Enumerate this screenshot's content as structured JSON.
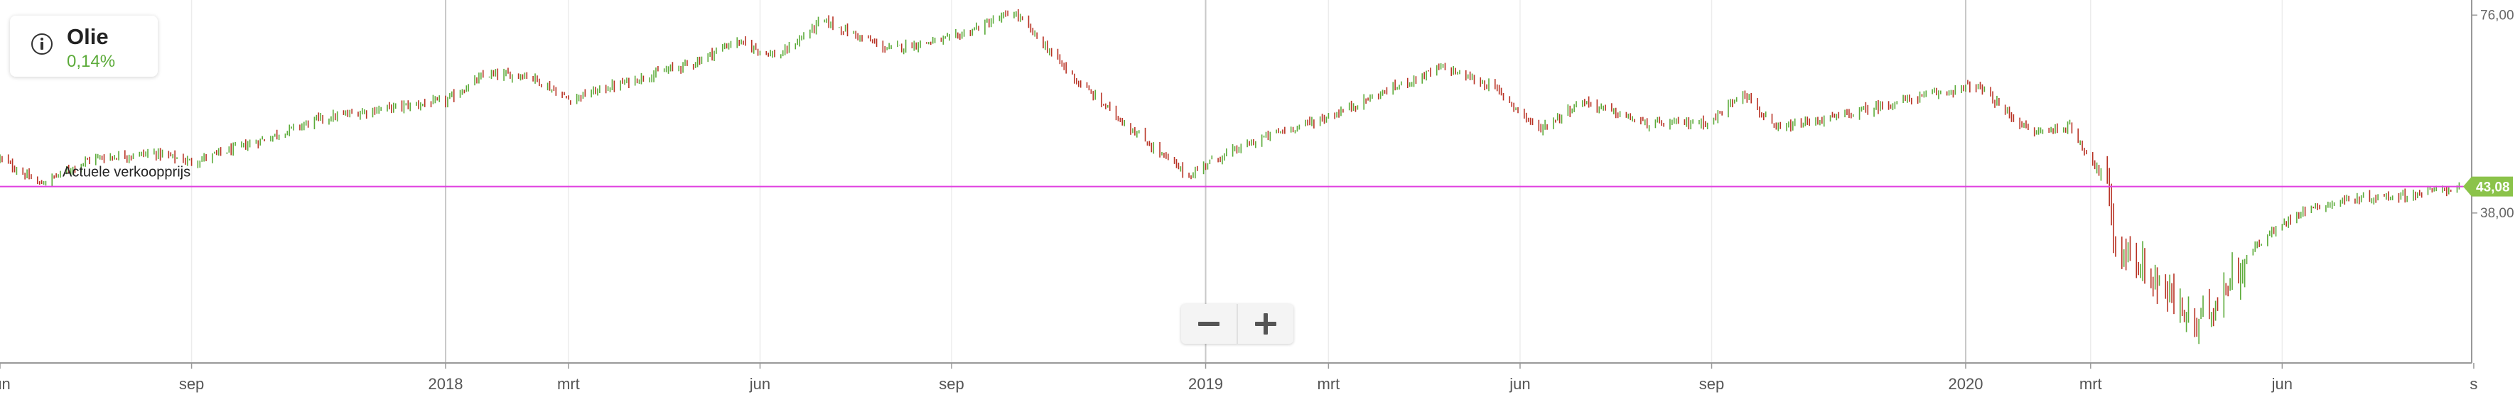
{
  "instrument": {
    "name": "Olie",
    "change": "0,14%",
    "change_color": "#5cab3a"
  },
  "zoom": {
    "out_icon": "minus-icon",
    "in_icon": "plus-icon"
  },
  "colors": {
    "up": "#5cab3a",
    "down": "#b83224",
    "reference_line": "#e040e0",
    "price_badge": "#8bc34a"
  },
  "chart_data": {
    "type": "candlestick",
    "title": "",
    "xlabel": "",
    "ylabel": "",
    "x_axis_type": "date",
    "xlim": [
      "2017-06-01",
      "2020-08-31"
    ],
    "ylim": [
      9.2,
      78.9
    ],
    "ylog": false,
    "grid": {
      "vertical": true,
      "horizontal": false
    },
    "x_ticks": [
      {
        "date": "2017-06-01",
        "label": "jun",
        "major": false
      },
      {
        "date": "2017-09-01",
        "label": "sep",
        "major": false
      },
      {
        "date": "2018-01-01",
        "label": "2018",
        "major": true
      },
      {
        "date": "2018-03-01",
        "label": "mrt",
        "major": false
      },
      {
        "date": "2018-06-01",
        "label": "jun",
        "major": false
      },
      {
        "date": "2018-09-01",
        "label": "sep",
        "major": false
      },
      {
        "date": "2019-01-01",
        "label": "2019",
        "major": true
      },
      {
        "date": "2019-03-01",
        "label": "mrt",
        "major": false
      },
      {
        "date": "2019-06-01",
        "label": "jun",
        "major": false
      },
      {
        "date": "2019-09-01",
        "label": "sep",
        "major": false
      },
      {
        "date": "2020-01-01",
        "label": "2020",
        "major": true
      },
      {
        "date": "2020-03-01",
        "label": "mrt",
        "major": false
      },
      {
        "date": "2020-06-01",
        "label": "jun",
        "major": false
      },
      {
        "date": "2020-09-01",
        "label": "s",
        "major": false
      }
    ],
    "y_ticks": [
      {
        "value": 76,
        "label": "76,00"
      },
      {
        "value": 38,
        "label": "38,00"
      }
    ],
    "reference_line": {
      "value": 43.08,
      "label": "Actuele verkoopprijs",
      "badge": "43,08"
    },
    "series": [
      {
        "values": [
          [
            "2017-06-01",
            48.5
          ],
          [
            "2017-06-20",
            43.5
          ],
          [
            "2017-07-15",
            48.5
          ],
          [
            "2017-08-15",
            49.5
          ],
          [
            "2017-09-01",
            47.8
          ],
          [
            "2017-10-01",
            51.5
          ],
          [
            "2017-11-01",
            56.0
          ],
          [
            "2017-12-01",
            58.0
          ],
          [
            "2018-01-01",
            59.5
          ],
          [
            "2018-01-20",
            64.5
          ],
          [
            "2018-02-10",
            64.5
          ],
          [
            "2018-03-01",
            59.8
          ],
          [
            "2018-04-01",
            63.5
          ],
          [
            "2018-05-01",
            67.0
          ],
          [
            "2018-05-20",
            71.0
          ],
          [
            "2018-06-10",
            68.0
          ],
          [
            "2018-07-01",
            75.0
          ],
          [
            "2018-08-01",
            69.5
          ],
          [
            "2018-09-01",
            71.5
          ],
          [
            "2018-10-01",
            76.5
          ],
          [
            "2018-11-01",
            63.0
          ],
          [
            "2018-12-01",
            52.5
          ],
          [
            "2018-12-24",
            45.0
          ],
          [
            "2019-01-01",
            47.5
          ],
          [
            "2019-02-01",
            53.0
          ],
          [
            "2019-03-01",
            56.5
          ],
          [
            "2019-04-01",
            62.0
          ],
          [
            "2019-04-25",
            66.0
          ],
          [
            "2019-05-20",
            62.0
          ],
          [
            "2019-06-10",
            54.0
          ],
          [
            "2019-07-01",
            59.5
          ],
          [
            "2019-08-01",
            55.0
          ],
          [
            "2019-09-01",
            55.5
          ],
          [
            "2019-09-16",
            61.5
          ],
          [
            "2019-10-01",
            54.0
          ],
          [
            "2019-11-01",
            56.5
          ],
          [
            "2019-12-01",
            59.5
          ],
          [
            "2020-01-06",
            62.5
          ],
          [
            "2020-02-01",
            53.5
          ],
          [
            "2020-02-20",
            54.5
          ],
          [
            "2020-03-09",
            43.5
          ],
          [
            "2020-03-12",
            32.5
          ],
          [
            "2020-04-01",
            25.0
          ],
          [
            "2020-04-21",
            16.0
          ],
          [
            "2020-05-01",
            22.0
          ],
          [
            "2020-05-20",
            32.0
          ],
          [
            "2020-06-10",
            38.5
          ],
          [
            "2020-07-01",
            40.5
          ],
          [
            "2020-08-01",
            41.5
          ],
          [
            "2020-08-25",
            43.0
          ]
        ]
      }
    ]
  }
}
